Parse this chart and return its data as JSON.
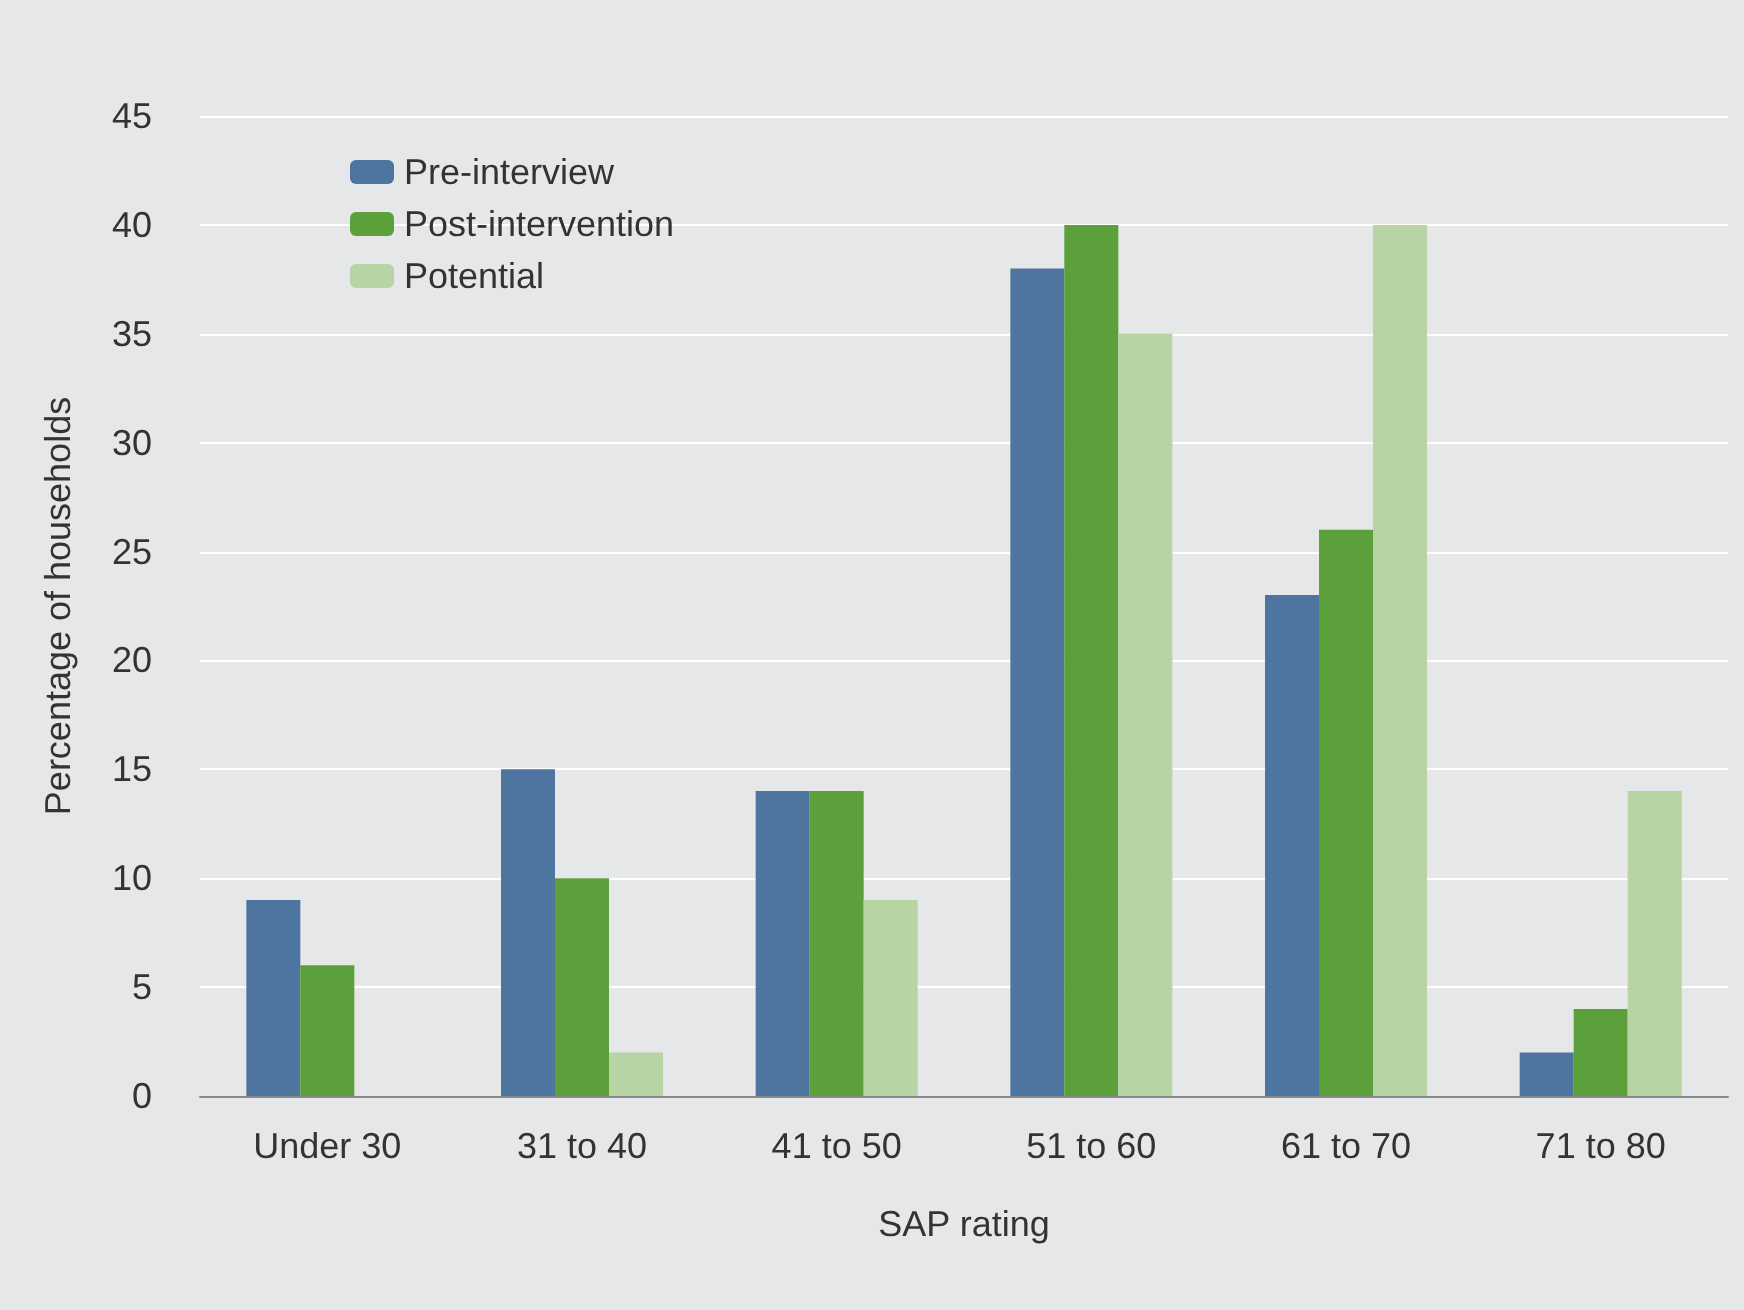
{
  "chart_data": {
    "type": "bar",
    "xlabel": "SAP rating",
    "ylabel": "Percentage of households",
    "categories": [
      "Under 30",
      "31 to 40",
      "41 to 50",
      "51 to 60",
      "61 to 70",
      "71 to 80"
    ],
    "series": [
      {
        "name": "Pre-interview",
        "color": "#4e74a0",
        "values": [
          9,
          15,
          14,
          38,
          23,
          2
        ]
      },
      {
        "name": "Post-intervention",
        "color": "#5ba03a",
        "values": [
          6,
          10,
          14,
          40,
          26,
          4
        ]
      },
      {
        "name": "Potential",
        "color": "#b9d4a4",
        "values": [
          0,
          2,
          9,
          35,
          40,
          14
        ]
      }
    ],
    "ylim": [
      0,
      45
    ],
    "yticks": [
      0,
      5,
      10,
      15,
      20,
      25,
      30,
      35,
      40,
      45
    ],
    "grid": "y",
    "legend": "top left"
  }
}
